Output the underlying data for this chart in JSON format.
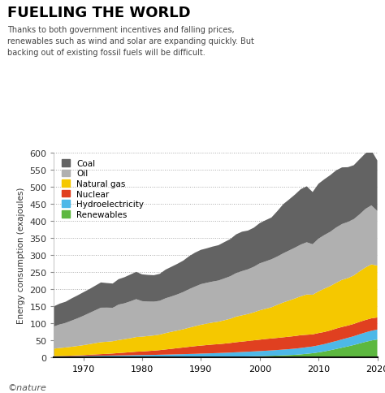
{
  "title": "FUELLING THE WORLD",
  "subtitle": "Thanks to both government incentives and falling prices,\nrenewables such as wind and solar are expanding quickly. But\nbacking out of existing fossil fuels will be difficult.",
  "ylabel": "Energy consumption (exajoules)",
  "copyright": "©nature",
  "years": [
    1965,
    1966,
    1967,
    1968,
    1969,
    1970,
    1971,
    1972,
    1973,
    1974,
    1975,
    1976,
    1977,
    1978,
    1979,
    1980,
    1981,
    1982,
    1983,
    1984,
    1985,
    1986,
    1987,
    1988,
    1989,
    1990,
    1991,
    1992,
    1993,
    1994,
    1995,
    1996,
    1997,
    1998,
    1999,
    2000,
    2001,
    2002,
    2003,
    2004,
    2005,
    2006,
    2007,
    2008,
    2009,
    2010,
    2011,
    2012,
    2013,
    2014,
    2015,
    2016,
    2017,
    2018,
    2019,
    2020
  ],
  "renewables": [
    0.1,
    0.1,
    0.1,
    0.1,
    0.1,
    0.2,
    0.2,
    0.2,
    0.2,
    0.2,
    0.3,
    0.3,
    0.3,
    0.3,
    0.4,
    0.4,
    0.5,
    0.5,
    0.6,
    0.7,
    0.8,
    0.9,
    1.0,
    1.1,
    1.2,
    1.4,
    1.5,
    1.7,
    1.9,
    2.1,
    2.4,
    2.7,
    3.1,
    3.4,
    3.8,
    4.2,
    4.7,
    5.2,
    5.8,
    6.5,
    7.2,
    8.1,
    9.4,
    11.1,
    12.8,
    15.2,
    18.0,
    21.5,
    25.2,
    29.0,
    32.8,
    36.8,
    41.5,
    46.0,
    50.0,
    53.0
  ],
  "hydro": [
    3.5,
    3.7,
    3.9,
    4.1,
    4.3,
    4.5,
    4.8,
    5.0,
    5.2,
    5.4,
    5.6,
    5.9,
    6.1,
    6.4,
    6.7,
    6.9,
    7.1,
    7.3,
    7.7,
    8.0,
    8.3,
    8.7,
    9.0,
    9.4,
    9.7,
    10.2,
    10.6,
    11.0,
    11.4,
    11.8,
    12.3,
    12.8,
    13.2,
    13.7,
    14.2,
    14.7,
    15.2,
    15.7,
    16.3,
    16.9,
    17.5,
    18.0,
    18.7,
    19.2,
    19.7,
    20.6,
    21.5,
    22.5,
    23.3,
    24.2,
    25.0,
    25.8,
    26.8,
    27.7,
    28.5,
    29.0
  ],
  "nuclear": [
    0.5,
    0.8,
    1.1,
    1.5,
    2.0,
    2.5,
    3.2,
    4.0,
    4.7,
    5.2,
    6.0,
    7.0,
    8.0,
    9.0,
    10.0,
    10.5,
    11.5,
    12.5,
    13.5,
    15.0,
    16.5,
    18.0,
    19.5,
    21.0,
    22.5,
    23.5,
    24.5,
    25.5,
    26.0,
    27.0,
    28.0,
    29.5,
    30.5,
    31.5,
    32.5,
    33.5,
    34.5,
    35.0,
    35.5,
    36.0,
    36.5,
    37.0,
    37.5,
    36.5,
    35.5,
    36.0,
    35.5,
    35.5,
    36.5,
    36.5,
    36.0,
    36.0,
    36.5,
    36.5,
    36.5,
    35.5
  ],
  "natural_gas": [
    22.0,
    23.5,
    24.5,
    26.0,
    27.5,
    29.0,
    31.0,
    33.0,
    35.0,
    35.5,
    36.0,
    38.0,
    39.5,
    41.0,
    43.0,
    43.5,
    44.0,
    44.5,
    45.5,
    48.0,
    50.0,
    51.5,
    53.5,
    56.0,
    58.5,
    61.0,
    63.0,
    64.5,
    66.0,
    68.5,
    71.0,
    75.0,
    77.0,
    79.0,
    82.0,
    86.0,
    88.5,
    91.5,
    97.0,
    102.0,
    106.0,
    110.0,
    114.0,
    118.0,
    116.0,
    122.0,
    127.0,
    130.0,
    134.0,
    138.0,
    139.0,
    142.0,
    148.0,
    154.0,
    158.0,
    152.0
  ],
  "oil": [
    65.0,
    69.0,
    72.0,
    76.5,
    81.0,
    86.0,
    91.0,
    96.0,
    101.0,
    100.0,
    98.0,
    104.0,
    105.0,
    108.0,
    111.0,
    104.0,
    101.0,
    99.0,
    99.0,
    102.0,
    103.5,
    106.0,
    109.0,
    113.0,
    116.0,
    119.0,
    119.5,
    120.0,
    120.5,
    122.5,
    124.5,
    127.5,
    129.5,
    131.0,
    133.5,
    137.5,
    139.0,
    140.5,
    141.5,
    144.0,
    146.5,
    149.0,
    151.5,
    153.0,
    148.0,
    154.5,
    157.0,
    159.0,
    162.0,
    163.5,
    164.5,
    165.0,
    167.0,
    171.5,
    173.0,
    160.0
  ],
  "coal": [
    59.0,
    61.0,
    62.0,
    65.0,
    67.0,
    69.0,
    70.0,
    72.0,
    74.0,
    72.0,
    71.0,
    74.5,
    76.5,
    78.5,
    80.0,
    78.5,
    78.0,
    77.5,
    79.0,
    84.0,
    87.0,
    89.5,
    92.0,
    96.5,
    99.5,
    100.5,
    101.0,
    102.5,
    103.5,
    106.5,
    109.0,
    113.5,
    115.5,
    113.5,
    114.5,
    118.0,
    120.5,
    122.5,
    133.0,
    144.0,
    149.5,
    155.5,
    162.5,
    164.0,
    153.0,
    161.0,
    163.5,
    166.0,
    167.5,
    166.0,
    160.5,
    158.0,
    161.5,
    163.0,
    161.0,
    148.0
  ],
  "legend_labels": [
    "Coal",
    "Oil",
    "Natural gas",
    "Nuclear",
    "Hydroelectricity",
    "Renewables"
  ],
  "legend_colors": [
    "#636363",
    "#b0b0b0",
    "#f5c800",
    "#e04020",
    "#4db8e8",
    "#5db840"
  ],
  "ylim": [
    0,
    600
  ],
  "yticks": [
    0,
    50,
    100,
    150,
    200,
    250,
    300,
    350,
    400,
    450,
    500,
    550,
    600
  ],
  "xticks": [
    1970,
    1980,
    1990,
    2000,
    2010,
    2020
  ],
  "background_color": "#ffffff",
  "title_color": "#000000",
  "subtitle_color": "#444444"
}
